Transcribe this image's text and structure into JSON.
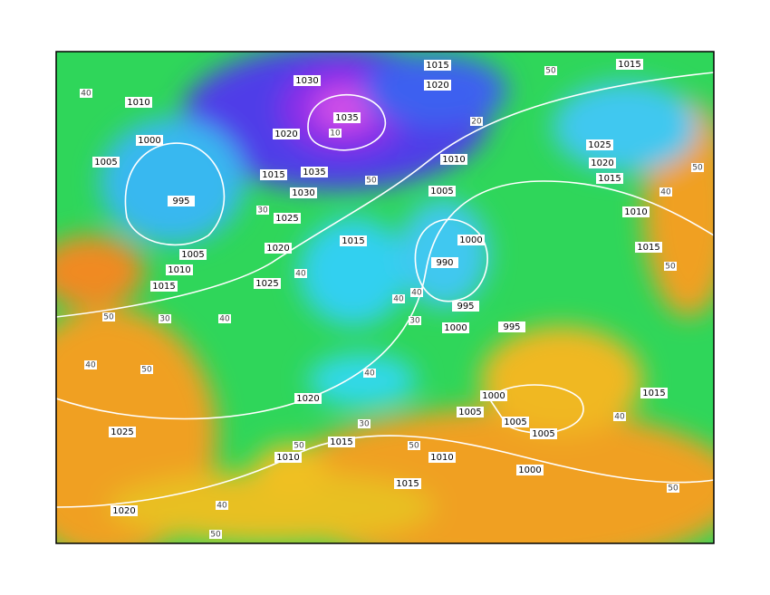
{
  "pressure_labels": [
    1015,
    1015,
    1030,
    1020,
    1010,
    1035,
    1000,
    1020,
    1005,
    1025,
    1020,
    1010,
    1015,
    1035,
    1015,
    1030,
    1005,
    995,
    1025,
    1010,
    1000,
    1020,
    1015,
    1005,
    1015,
    1010,
    990,
    1015,
    1025,
    995,
    995,
    1000,
    1020,
    1000,
    1015,
    1005,
    1005,
    1025,
    1015,
    1005,
    1010,
    1010,
    1000,
    1015,
    1020
  ],
  "thickness_labels": [
    40,
    50,
    20,
    10,
    30,
    40,
    50,
    30,
    40,
    50,
    40,
    40,
    30,
    50,
    40,
    40,
    50,
    50,
    40,
    50,
    30,
    40,
    50,
    50,
    40,
    50
  ]
}
